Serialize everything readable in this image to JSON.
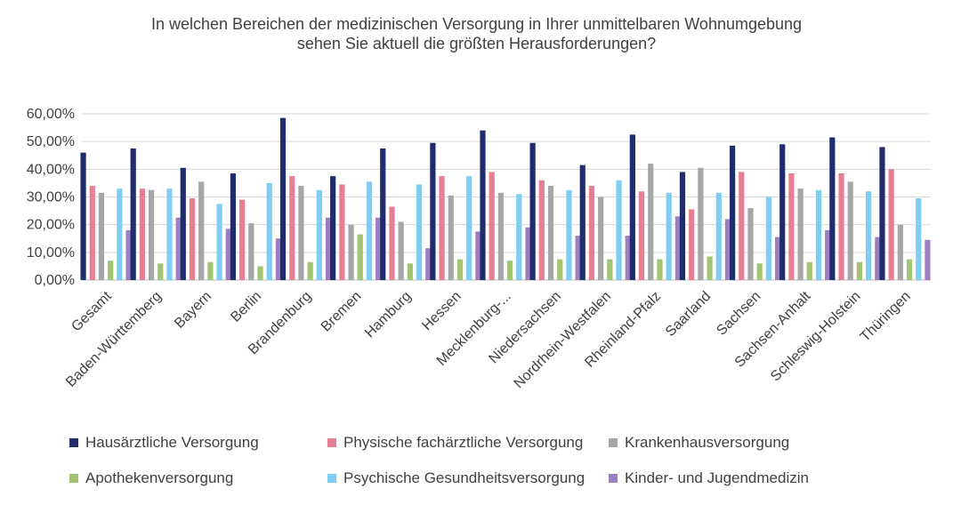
{
  "chart_data": {
    "type": "bar",
    "title_lines": [
      "In welchen Bereichen der medizinischen Versorgung in Ihrer unmittelbaren Wohnumgebung",
      "sehen Sie aktuell die größten Herausforderungen?"
    ],
    "categories": [
      "Gesamt",
      "Baden-Württemberg",
      "Bayern",
      "Berlin",
      "Brandenburg",
      "Bremen",
      "Hamburg",
      "Hessen",
      "Mecklenburg-...",
      "Niedersachsen",
      "Nordrhein-Westfalen",
      "Rheinland-Pfalz",
      "Saarland",
      "Sachsen",
      "Sachsen-Anhalt",
      "Schleswig-Holstein",
      "Thüringen"
    ],
    "y_ticks": [
      "0,00%",
      "10,00%",
      "20,00%",
      "30,00%",
      "40,00%",
      "50,00%",
      "60,00%"
    ],
    "ylim": [
      0,
      60
    ],
    "grid": true,
    "legend_position": "bottom",
    "series": [
      {
        "name": "Hausärztliche Versorgung",
        "color": "#1f2d6e",
        "values": [
          46,
          47.5,
          40.5,
          38.5,
          58.5,
          37.5,
          47.5,
          49.5,
          54,
          49.5,
          41.5,
          52.5,
          39,
          48.5,
          49,
          51.5,
          48
        ]
      },
      {
        "name": "Physische fachärztliche Versorgung",
        "color": "#e87e91",
        "values": [
          34,
          33,
          29.5,
          29,
          37.5,
          34.5,
          26.5,
          37.5,
          39,
          36,
          34,
          32,
          25.5,
          39,
          38.5,
          38.5,
          40
        ]
      },
      {
        "name": "Krankenhausversorgung",
        "color": "#a6a6a6",
        "values": [
          31.5,
          32.5,
          35.5,
          20.5,
          34,
          20,
          21,
          30.5,
          31.5,
          34,
          30,
          42,
          40.5,
          26,
          33,
          35.5,
          20
        ]
      },
      {
        "name": "Apothekenversorgung",
        "color": "#a3c470",
        "values": [
          7,
          6,
          6.5,
          5,
          6.5,
          16.5,
          6,
          7.5,
          7,
          7.5,
          7.5,
          7.5,
          8.5,
          6,
          6.5,
          6.5,
          7.5
        ]
      },
      {
        "name": "Psychische Gesundheitsversorgung",
        "color": "#7fcdf2",
        "values": [
          33,
          33,
          27.5,
          35,
          32.5,
          35.5,
          34.5,
          37.5,
          31,
          32.5,
          36,
          31.5,
          31.5,
          30,
          32.5,
          32,
          29.5
        ]
      },
      {
        "name": "Kinder- und Jugendmedizin",
        "color": "#9b7fc1",
        "values": [
          18,
          22.5,
          18.5,
          15,
          22.5,
          22.5,
          11.5,
          17.5,
          19,
          16,
          16,
          23,
          22,
          15.5,
          18,
          15.5,
          14.5
        ]
      }
    ]
  }
}
